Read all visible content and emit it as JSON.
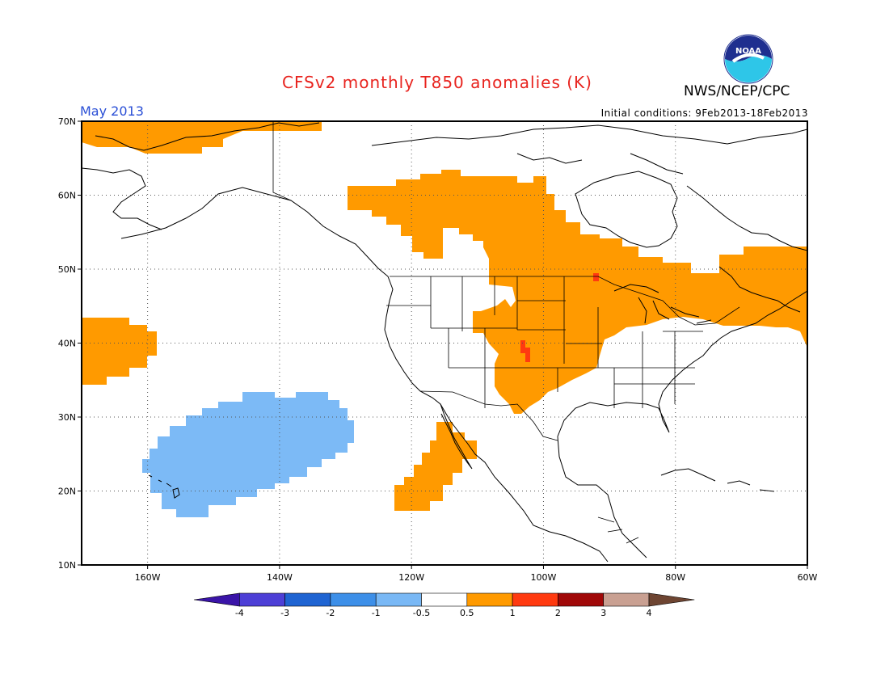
{
  "header": {
    "title": "CFSv2 monthly T850 anomalies (K)",
    "agency": "NWS/NCEP/CPC",
    "logo_text": "NOAA",
    "period": "May 2013",
    "initial_conditions": "Initial conditions: 9Feb2013-18Feb2013"
  },
  "map": {
    "lon_range": [
      -170,
      -60
    ],
    "lat_range": [
      10,
      70
    ],
    "lon_ticks": [
      {
        "value": -160,
        "label": "160W"
      },
      {
        "value": -140,
        "label": "140W"
      },
      {
        "value": -120,
        "label": "120W"
      },
      {
        "value": -100,
        "label": "100W"
      },
      {
        "value": -80,
        "label": "80W"
      },
      {
        "value": -60,
        "label": "60W"
      }
    ],
    "lat_ticks": [
      {
        "value": 70,
        "label": "70N"
      },
      {
        "value": 60,
        "label": "60N"
      },
      {
        "value": 50,
        "label": "50N"
      },
      {
        "value": 40,
        "label": "40N"
      },
      {
        "value": 30,
        "label": "30N"
      },
      {
        "value": 20,
        "label": "20N"
      },
      {
        "value": 10,
        "label": "10N"
      }
    ],
    "grid": "dotted"
  },
  "colorbar": {
    "labels": [
      "-4",
      "-3",
      "-2",
      "-1",
      "-0.5",
      "0.5",
      "1",
      "2",
      "3",
      "4"
    ],
    "colors": [
      "#3a14a8",
      "#4d3fd6",
      "#1f64d2",
      "#3d8fe8",
      "#79b8f5",
      "#ffffff",
      "#ff9a00",
      "#ff3a10",
      "#a00808",
      "#c9a092",
      "#6e4532"
    ],
    "unit": "K"
  },
  "anomaly_regions": [
    {
      "level": "0.5 to 1",
      "color": "#ff9a00",
      "area": "Alaska North Slope and Beaufort coast"
    },
    {
      "level": "0.5 to 1",
      "color": "#ff9a00",
      "area": "Central Canada, Northern and Central Plains, Great Lakes"
    },
    {
      "level": "0.5 to 1",
      "color": "#ff9a00",
      "area": "Southeast Canada and Northeast US coast"
    },
    {
      "level": "0.5 to 1",
      "color": "#ff9a00",
      "area": "Northeast Pacific near 40N 165W"
    },
    {
      "level": "0.5 to 1",
      "color": "#ff9a00",
      "area": "Baja California and adjacent Pacific"
    },
    {
      "level": "1 to 2",
      "color": "#ff3a10",
      "area": "Central Plains near 38N 103W"
    },
    {
      "level": "1 to 2",
      "color": "#ff3a10",
      "area": "Near 50N 92W"
    },
    {
      "level": "-1 to -0.5",
      "color": "#79b8f5",
      "area": "Central Pacific north of Hawaii"
    }
  ]
}
